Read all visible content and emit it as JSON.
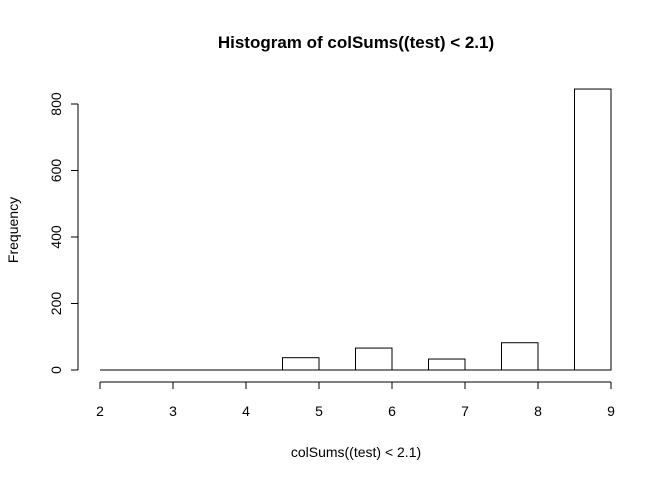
{
  "chart_data": {
    "type": "bar",
    "title": "Histogram of colSums((test) < 2.1)",
    "xlabel": "colSums((test) < 2.1)",
    "ylabel": "Frequency",
    "x_ticks": [
      "2",
      "3",
      "4",
      "5",
      "6",
      "7",
      "8",
      "9"
    ],
    "y_ticks": [
      "0",
      "200",
      "400",
      "600",
      "800"
    ],
    "xlim": [
      2,
      9
    ],
    "ylim": [
      0,
      800
    ],
    "bins": [
      {
        "from": 2.0,
        "to": 2.5,
        "value": 0
      },
      {
        "from": 2.5,
        "to": 3.0,
        "value": 0
      },
      {
        "from": 3.0,
        "to": 3.5,
        "value": 0
      },
      {
        "from": 3.5,
        "to": 4.0,
        "value": 0
      },
      {
        "from": 4.0,
        "to": 4.5,
        "value": 0
      },
      {
        "from": 4.5,
        "to": 5.0,
        "value": 37
      },
      {
        "from": 5.0,
        "to": 5.5,
        "value": 0
      },
      {
        "from": 5.5,
        "to": 6.0,
        "value": 66
      },
      {
        "from": 6.0,
        "to": 6.5,
        "value": 0
      },
      {
        "from": 6.5,
        "to": 7.0,
        "value": 33
      },
      {
        "from": 7.0,
        "to": 7.5,
        "value": 0
      },
      {
        "from": 7.5,
        "to": 8.0,
        "value": 82
      },
      {
        "from": 8.0,
        "to": 8.5,
        "value": 0
      },
      {
        "from": 8.5,
        "to": 9.0,
        "value": 845
      }
    ],
    "grid": false,
    "colors": {
      "bar_fill": "#ffffff",
      "bar_stroke": "#000000"
    }
  }
}
